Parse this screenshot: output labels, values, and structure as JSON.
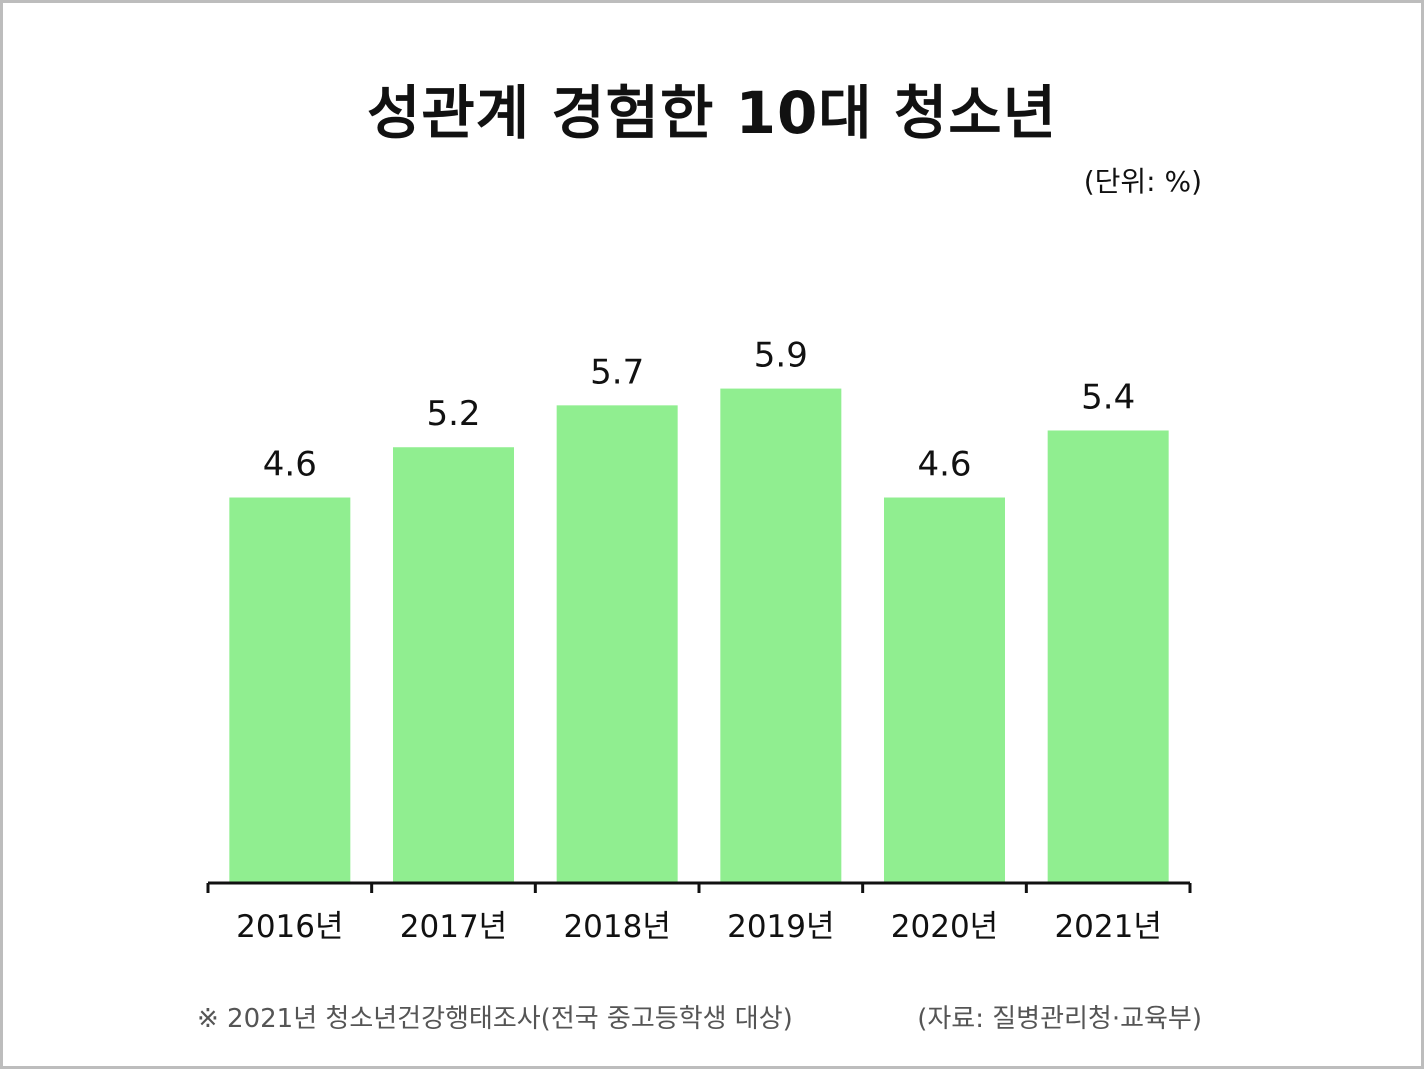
{
  "chart_data": {
    "type": "bar",
    "title": "성관계 경험한 10대 청소년",
    "unit_label": "(단위: %)",
    "categories": [
      "2016년",
      "2017년",
      "2018년",
      "2019년",
      "2020년",
      "2021년"
    ],
    "values": [
      4.6,
      5.2,
      5.7,
      5.9,
      4.6,
      5.4
    ],
    "value_labels": [
      "4.6",
      "5.2",
      "5.7",
      "5.9",
      "4.6",
      "5.4"
    ],
    "ylim": [
      0,
      6
    ],
    "grid": false,
    "legend": "none",
    "bar_color": "#90ee90",
    "axis_color": "#111111"
  },
  "footnote": "※ 2021년 청소년건강행태조사(전국 중고등학생 대상)",
  "source": "(자료: 질병관리청·교육부)"
}
